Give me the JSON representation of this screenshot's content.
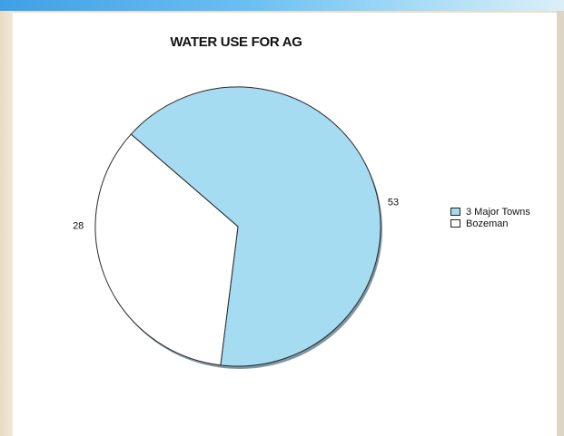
{
  "chart_data": {
    "type": "pie",
    "title": "WATER USE FOR AG",
    "slices": [
      {
        "label": "3 Major Towns",
        "value": 53,
        "color": "#a6dcf1"
      },
      {
        "label": "Bozeman",
        "value": 28,
        "color": "#ffffff"
      }
    ],
    "data_labels": [
      "53",
      "28"
    ],
    "legend_position": "right"
  }
}
